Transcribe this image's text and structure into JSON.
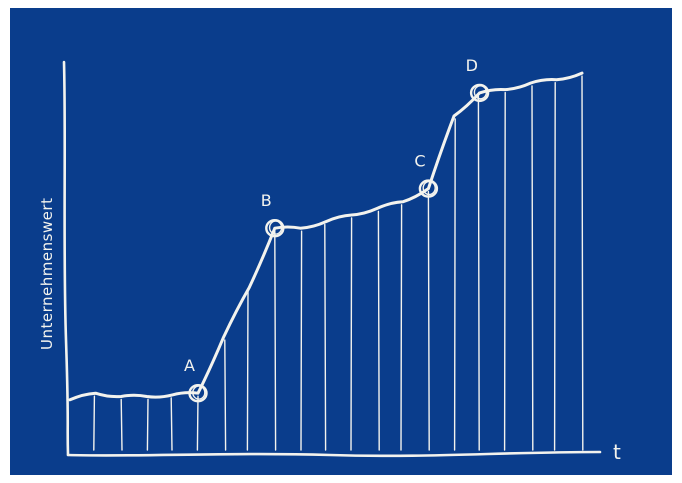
{
  "colors": {
    "board": "#0a3d8c",
    "chalk": "#f3f3ee"
  },
  "chart_data": {
    "type": "line",
    "style": "hand-drawn sketch with vertical hatching under the curve",
    "ylabel": "Unternehmenswert",
    "xlabel": "t",
    "grid": false,
    "x": [
      0,
      1,
      2,
      3,
      4,
      5,
      6,
      7,
      8,
      9,
      10,
      11,
      12,
      13,
      14,
      15,
      16,
      17,
      18,
      19,
      20
    ],
    "y": [
      14,
      16,
      15,
      15,
      15.5,
      16,
      33,
      48,
      66,
      66,
      68,
      70,
      72,
      74,
      78,
      100,
      107,
      108,
      110,
      111,
      113
    ],
    "markers": [
      {
        "label": "A",
        "x": 5,
        "y": 16
      },
      {
        "label": "B",
        "x": 8,
        "y": 66
      },
      {
        "label": "C",
        "x": 14,
        "y": 78
      },
      {
        "label": "D",
        "x": 16,
        "y": 107
      }
    ]
  }
}
